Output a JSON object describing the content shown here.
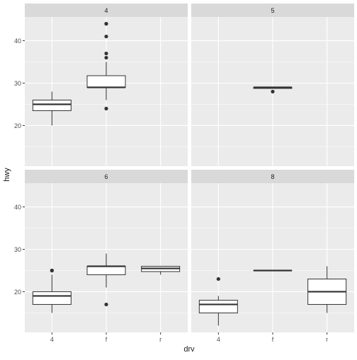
{
  "chart_data": {
    "type": "boxplot",
    "facet_variable": "cyl",
    "facets": [
      {
        "label": "4",
        "boxes": [
          {
            "category": "4",
            "min": 20,
            "q1": 23.5,
            "median": 25,
            "q3": 26,
            "max": 28,
            "outliers": []
          },
          {
            "category": "f",
            "min": 26,
            "q1": 29,
            "median": 29,
            "q3": 31.75,
            "max": 35,
            "outliers": [
              24,
              36,
              37,
              41,
              44,
              44
            ]
          }
        ]
      },
      {
        "label": "5",
        "boxes": [
          {
            "category": "f",
            "min": 28.75,
            "q1": 28.75,
            "median": 29,
            "q3": 29,
            "max": 29,
            "outliers": [
              28
            ]
          }
        ]
      },
      {
        "label": "6",
        "boxes": [
          {
            "category": "4",
            "min": 15,
            "q1": 17,
            "median": 19,
            "q3": 20,
            "max": 24,
            "outliers": [
              25,
              25
            ]
          },
          {
            "category": "f",
            "min": 21,
            "q1": 24,
            "median": 26,
            "q3": 26,
            "max": 29,
            "outliers": [
              17
            ]
          },
          {
            "category": "r",
            "min": 24,
            "q1": 24.75,
            "median": 25.5,
            "q3": 26,
            "max": 26,
            "outliers": []
          }
        ]
      },
      {
        "label": "8",
        "boxes": [
          {
            "category": "4",
            "min": 12,
            "q1": 15,
            "median": 17,
            "q3": 18,
            "max": 19,
            "outliers": [
              23
            ]
          },
          {
            "category": "f",
            "min": 25,
            "q1": 25,
            "median": 25,
            "q3": 25,
            "max": 25,
            "outliers": []
          },
          {
            "category": "r",
            "min": 15,
            "q1": 17,
            "median": 20,
            "q3": 23,
            "max": 26,
            "outliers": []
          }
        ]
      }
    ],
    "categories": [
      "4",
      "f",
      "r"
    ],
    "ylim": [
      10.4,
      45.6
    ],
    "yticks": [
      20,
      30,
      40
    ],
    "xlabel": "drv",
    "ylabel": "hwy",
    "grid": true,
    "colors": {
      "panel_background": "#ebebeb",
      "grid_major": "#ffffff",
      "strip_background": "#d9d9d9",
      "box_fill": "#ffffff",
      "box_line": "#333333",
      "text": "#1a1a1a",
      "tick_text": "#4d4d4d",
      "tick_line": "#333333"
    }
  }
}
